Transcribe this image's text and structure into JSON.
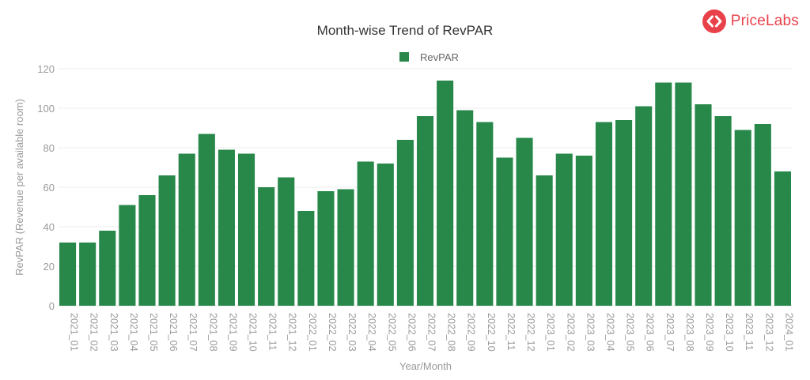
{
  "brand": {
    "name": "PriceLabs",
    "color": "#e8414a"
  },
  "colors": {
    "bar": "#27884a",
    "grid": "#ececec",
    "axis_text": "#9a9a9a",
    "title": "#333333"
  },
  "chart_data": {
    "type": "bar",
    "title": "Month-wise Trend of RevPAR",
    "xlabel": "Year/Month",
    "ylabel": "RevPAR (Revenue per available room)",
    "ylim": [
      0,
      120
    ],
    "yticks": [
      0,
      20,
      40,
      60,
      80,
      100,
      120
    ],
    "grid": true,
    "legend_position": "top-center",
    "categories": [
      "2021_01",
      "2021_02",
      "2021_03",
      "2021_04",
      "2021_05",
      "2021_06",
      "2021_07",
      "2021_08",
      "2021_09",
      "2021_10",
      "2021_11",
      "2021_12",
      "2022_01",
      "2022_02",
      "2022_03",
      "2022_04",
      "2022_05",
      "2022_06",
      "2022_07",
      "2022_08",
      "2022_09",
      "2022_10",
      "2022_11",
      "2022_12",
      "2023_01",
      "2023_02",
      "2023_03",
      "2023_04",
      "2023_05",
      "2023_06",
      "2023_07",
      "2023_08",
      "2023_09",
      "2023_10",
      "2023_11",
      "2023_12",
      "2024_01"
    ],
    "series": [
      {
        "name": "RevPAR",
        "color": "#27884a",
        "values": [
          32,
          32,
          38,
          51,
          56,
          66,
          77,
          87,
          79,
          77,
          60,
          65,
          48,
          58,
          59,
          73,
          72,
          84,
          96,
          114,
          99,
          93,
          75,
          85,
          66,
          77,
          76,
          93,
          94,
          101,
          113,
          113,
          102,
          96,
          89,
          92,
          68
        ]
      }
    ]
  }
}
